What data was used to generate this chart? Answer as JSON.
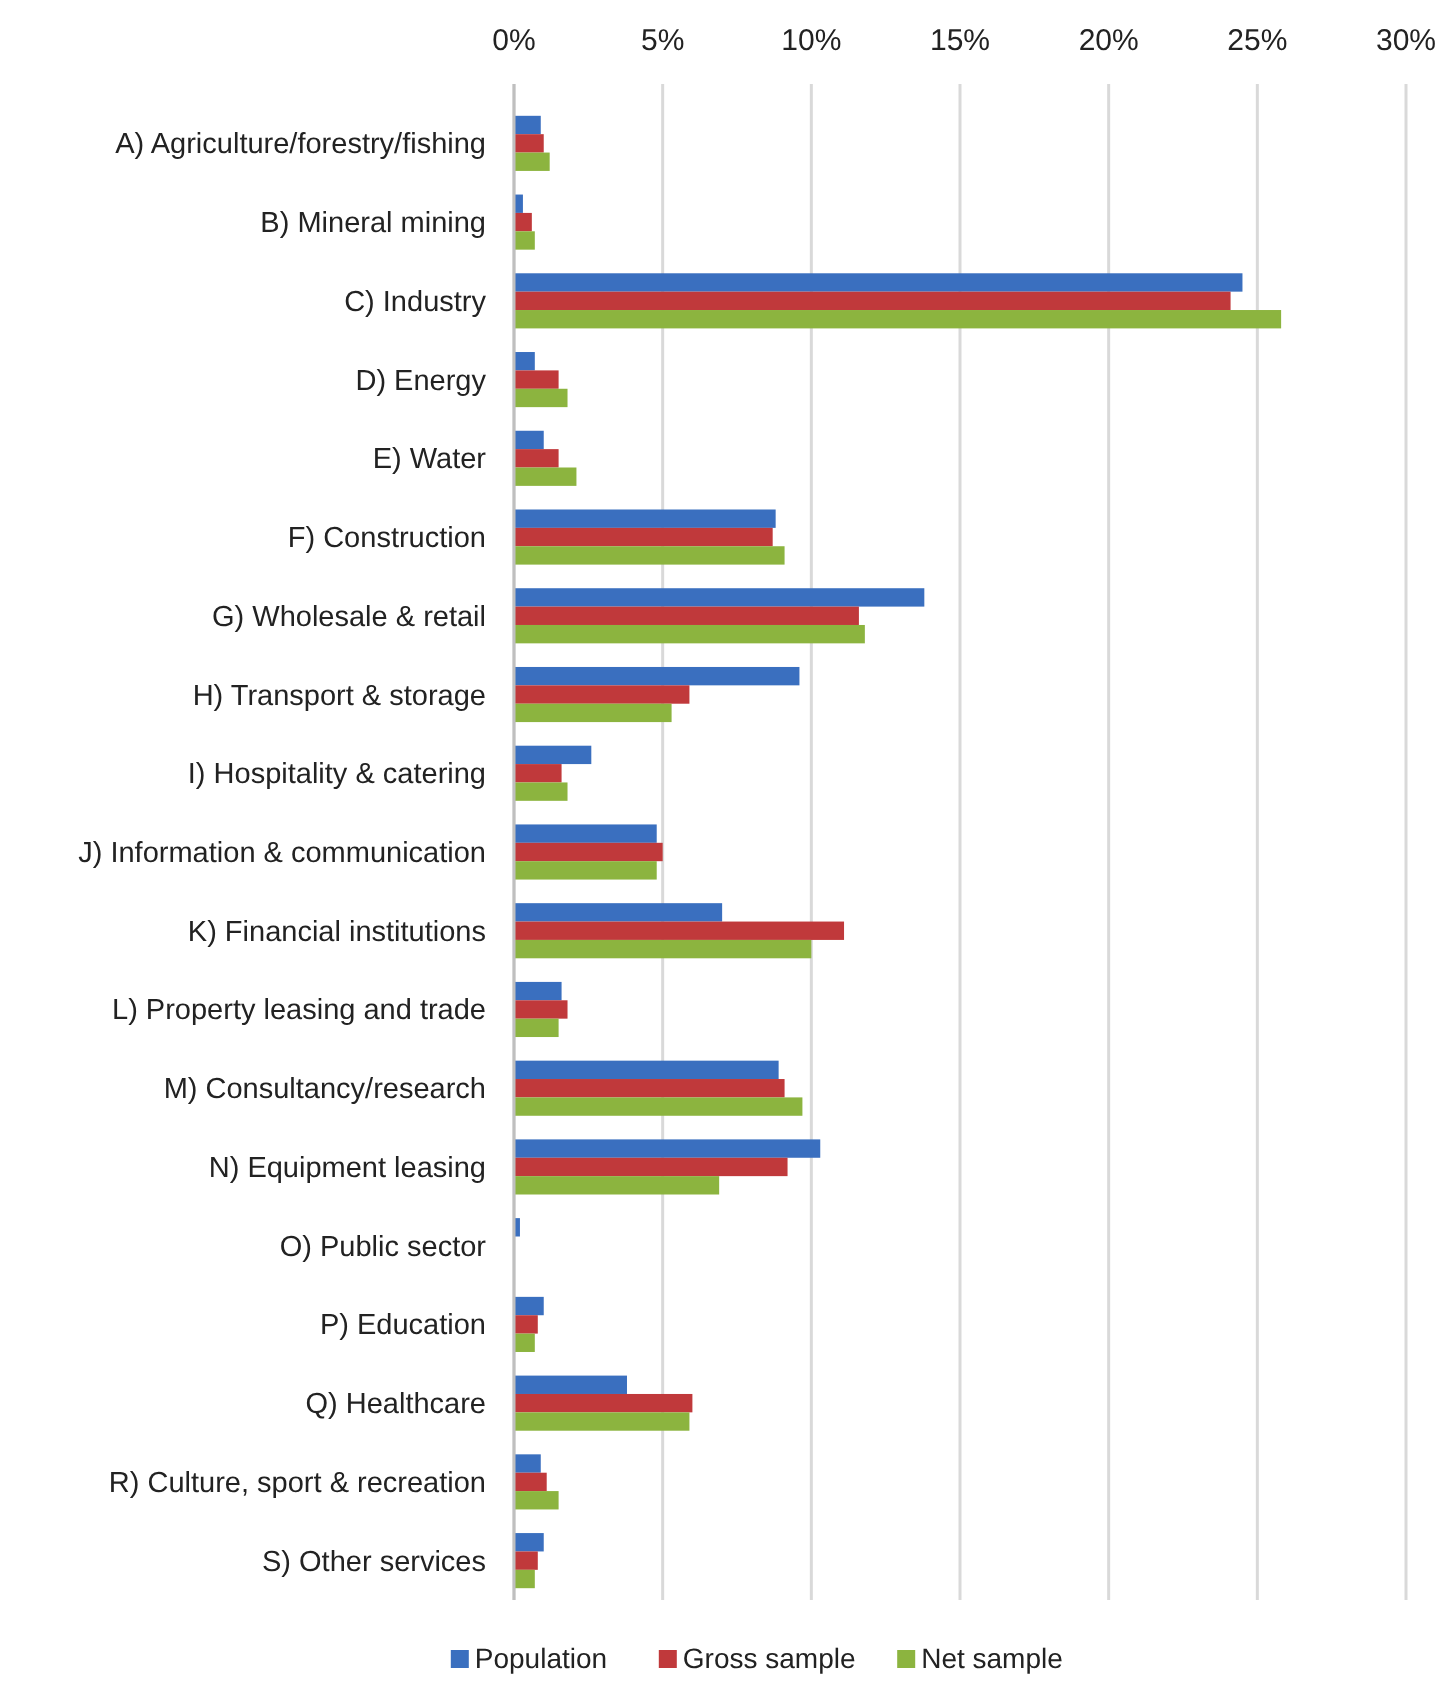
{
  "chart_data": {
    "type": "bar",
    "orientation": "horizontal",
    "categories": [
      "A) Agriculture/forestry/fishing",
      "B) Mineral mining",
      "C) Industry",
      "D) Energy",
      "E) Water",
      "F) Construction",
      "G) Wholesale & retail",
      "H) Transport & storage",
      "I) Hospitality & catering",
      "J) Information & communication",
      "K) Financial institutions",
      "L) Property leasing and trade",
      "M) Consultancy/research",
      "N) Equipment leasing",
      "O) Public sector",
      "P) Education",
      "Q) Healthcare",
      "R) Culture, sport & recreation",
      "S) Other services"
    ],
    "series": [
      {
        "name": "Population",
        "color": "#3a6fbf",
        "values": [
          0.9,
          0.3,
          24.5,
          0.7,
          1.0,
          8.8,
          13.8,
          9.6,
          2.6,
          4.8,
          7.0,
          1.6,
          8.9,
          10.3,
          0.2,
          1.0,
          3.8,
          0.9,
          1.0
        ]
      },
      {
        "name": "Gross sample",
        "color": "#c0393b",
        "values": [
          1.0,
          0.6,
          24.1,
          1.5,
          1.5,
          8.7,
          11.6,
          5.9,
          1.6,
          5.0,
          11.1,
          1.8,
          9.1,
          9.2,
          0,
          0.8,
          6.0,
          1.1,
          0.8
        ]
      },
      {
        "name": "Net sample",
        "color": "#8cb43f",
        "values": [
          1.2,
          0.7,
          25.8,
          1.8,
          2.1,
          9.1,
          11.8,
          5.3,
          1.8,
          4.8,
          10.0,
          1.5,
          9.7,
          6.9,
          0,
          0.7,
          5.9,
          1.5,
          0.7
        ]
      }
    ],
    "xlim": [
      0,
      30
    ],
    "xticks": [
      {
        "value": 0,
        "label": "0%"
      },
      {
        "value": 5,
        "label": "5%"
      },
      {
        "value": 10,
        "label": "10%"
      },
      {
        "value": 15,
        "label": "15%"
      },
      {
        "value": 20,
        "label": "20%"
      },
      {
        "value": 25,
        "label": "25%"
      },
      {
        "value": 30,
        "label": "30%"
      }
    ],
    "grid": "x",
    "legend": "bottom"
  }
}
